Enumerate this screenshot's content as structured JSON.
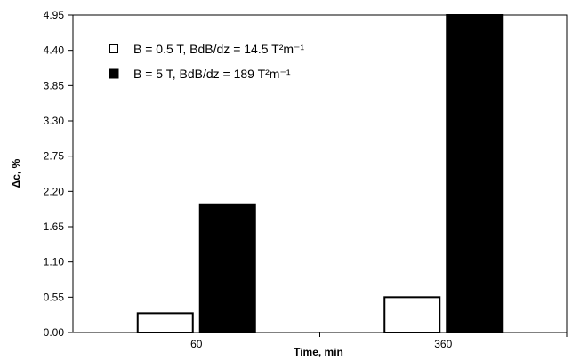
{
  "chart_data": {
    "type": "bar",
    "categories": [
      "60",
      "360"
    ],
    "series": [
      {
        "name": "B = 0.5 T,  BdB/dz = 14.5 T²m⁻¹",
        "values": [
          0.3,
          0.55
        ],
        "fill": "#ffffff",
        "stroke": "#000000"
      },
      {
        "name": "B = 5 T,  BdB/dz = 189 T²m⁻¹",
        "values": [
          2.0,
          4.95
        ],
        "fill": "#000000",
        "stroke": "#000000"
      }
    ],
    "xlabel": "Time, min",
    "ylabel": "Δc, %",
    "ylim": [
      0,
      4.95
    ],
    "yticks": [
      "0.00",
      "0.55",
      "1.10",
      "1.65",
      "2.20",
      "2.75",
      "3.30",
      "3.85",
      "4.40",
      "4.95"
    ],
    "legend_position": "top-left",
    "grid": false
  }
}
